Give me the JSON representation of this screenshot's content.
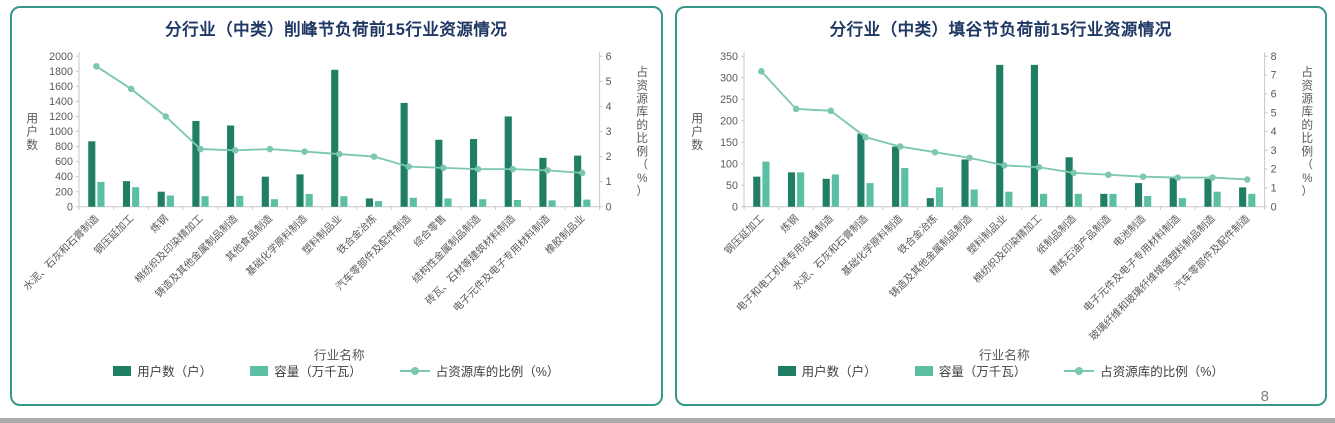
{
  "page_number": "8",
  "colors": {
    "bar_primary": "#1f7e63",
    "bar_secondary": "#5abfa3",
    "line": "#7cc7b0",
    "panel_border": "#35998a",
    "title": "#1f3864",
    "axis_text": "#595959",
    "axis_line": "#c9c9c9"
  },
  "chart_data": [
    {
      "type": "bar",
      "subtype": "bar+line combo, dual axis",
      "title": "分行业（中类）削峰节负荷前15行业资源情况",
      "xlabel": "行业名称",
      "y1": {
        "label": "用户数",
        "min": 0,
        "max": 2000,
        "step": 200
      },
      "y2": {
        "label": "占资源库的比例（%）",
        "min": 0,
        "max": 6,
        "step": 1
      },
      "legend_position": "bottom",
      "grid": false,
      "categories": [
        "水泥、石灰和石膏制造",
        "钢压延加工",
        "炼钢",
        "棉纺织及印染精加工",
        "铸造及其他金属制品制造",
        "其他食品制造",
        "基础化学原料制造",
        "塑料制品业",
        "铁合金冶炼",
        "汽车零部件及配件制造",
        "综合零售",
        "结构性金属制品制造",
        "砖瓦、石材等建筑材料制造",
        "电子元件及电子专用材料制造",
        "橡胶制品业"
      ],
      "bar_series": [
        {
          "name": "用户数（户）",
          "color": "#1f7e63",
          "axis": "y1",
          "values": [
            870,
            340,
            200,
            1140,
            1080,
            400,
            430,
            1820,
            110,
            1380,
            890,
            900,
            1200,
            650,
            680
          ]
        },
        {
          "name": "容量（万千瓦）",
          "color": "#5abfa3",
          "axis": "y1",
          "values": [
            330,
            260,
            150,
            140,
            145,
            100,
            170,
            140,
            75,
            120,
            110,
            100,
            90,
            85,
            95
          ]
        }
      ],
      "line_series": {
        "name": "占资源库的比例（%）",
        "color": "#7cc7b0",
        "axis": "y2",
        "values": [
          5.6,
          4.7,
          3.6,
          2.3,
          2.25,
          2.3,
          2.2,
          2.1,
          2.0,
          1.6,
          1.55,
          1.5,
          1.5,
          1.45,
          1.35
        ]
      }
    },
    {
      "type": "bar",
      "subtype": "bar+line combo, dual axis",
      "title": "分行业（中类）填谷节负荷前15行业资源情况",
      "xlabel": "行业名称",
      "y1": {
        "label": "用户数",
        "min": 0,
        "max": 350,
        "step": 50
      },
      "y2": {
        "label": "占资源库的比例（%）",
        "min": 0,
        "max": 8,
        "step": 1
      },
      "legend_position": "bottom",
      "grid": false,
      "categories": [
        "钢压延加工",
        "炼钢",
        "电子和电工机械专用设备制造",
        "水泥、石灰和石膏制造",
        "基础化学原料制造",
        "铁合金冶炼",
        "铸造及其他金属制品制造",
        "塑料制品业",
        "棉纺织及印染精加工",
        "纸制品制造",
        "精炼石油产品制造",
        "电池制造",
        "电子元件及电子专用材料制造",
        "玻璃纤维和玻璃纤维增强塑料制品制造",
        "汽车零部件及配件制造"
      ],
      "bar_series": [
        {
          "name": "用户数（户）",
          "color": "#1f7e63",
          "axis": "y1",
          "values": [
            70,
            80,
            65,
            170,
            140,
            20,
            110,
            330,
            330,
            115,
            30,
            55,
            70,
            65,
            45
          ]
        },
        {
          "name": "容量（万千瓦）",
          "color": "#5abfa3",
          "axis": "y1",
          "values": [
            105,
            80,
            75,
            55,
            90,
            45,
            40,
            35,
            30,
            30,
            30,
            25,
            20,
            35,
            30
          ]
        }
      ],
      "line_series": {
        "name": "占资源库的比例（%）",
        "color": "#7cc7b0",
        "axis": "y2",
        "values": [
          7.2,
          5.2,
          5.1,
          3.7,
          3.2,
          2.9,
          2.6,
          2.2,
          2.1,
          1.8,
          1.7,
          1.6,
          1.55,
          1.55,
          1.45
        ]
      }
    }
  ]
}
